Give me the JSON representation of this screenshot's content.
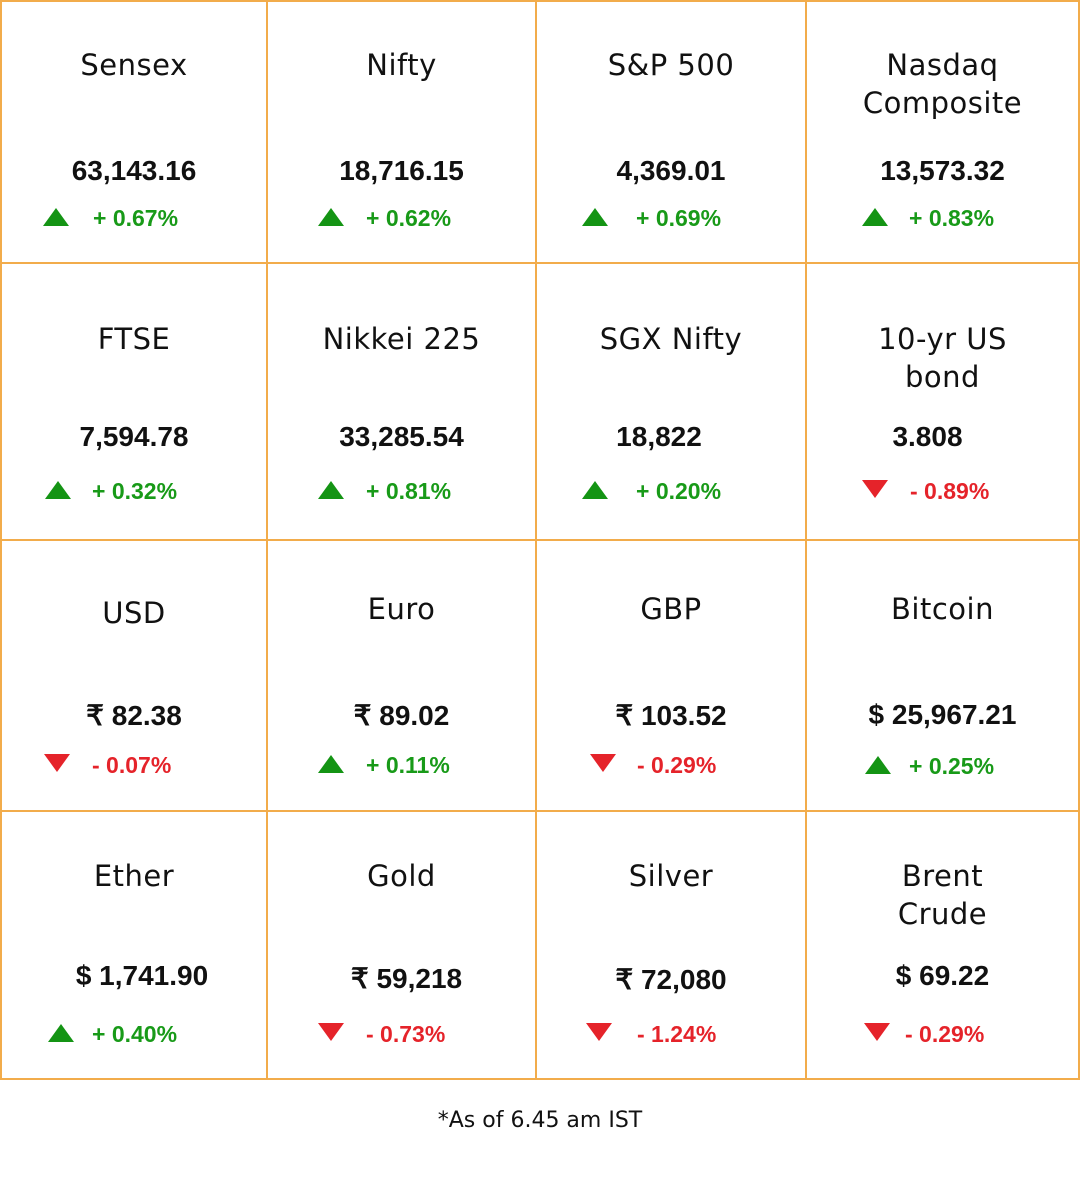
{
  "footnote": "*As of 6.45 am IST",
  "colors": {
    "border": "#f2ac4b",
    "up": "#189a18",
    "down": "#e5232a"
  },
  "tiles": [
    {
      "name": "Sensex",
      "value": "63,143.16",
      "change": "+ 0.67%",
      "direction": "up",
      "direction_icon": "up-triangle-icon"
    },
    {
      "name": "Nifty",
      "value": "18,716.15",
      "change": "+ 0.62%",
      "direction": "up",
      "direction_icon": "up-triangle-icon"
    },
    {
      "name": "S&P 500",
      "value": "4,369.01",
      "change": "+ 0.69%",
      "direction": "up",
      "direction_icon": "up-triangle-icon"
    },
    {
      "name": "Nasdaq Composite",
      "value": "13,573.32",
      "change": "+ 0.83%",
      "direction": "up",
      "direction_icon": "up-triangle-icon"
    },
    {
      "name": "FTSE",
      "value": "7,594.78",
      "change": "+ 0.32%",
      "direction": "up",
      "direction_icon": "up-triangle-icon"
    },
    {
      "name": "Nikkei 225",
      "value": "33,285.54",
      "change": "+ 0.81%",
      "direction": "up",
      "direction_icon": "up-triangle-icon"
    },
    {
      "name": "SGX Nifty",
      "value": "18,822",
      "change": "+ 0.20%",
      "direction": "up",
      "direction_icon": "up-triangle-icon"
    },
    {
      "name": "10-yr US bond",
      "value": "3.808",
      "change": "- 0.89%",
      "direction": "down",
      "direction_icon": "down-triangle-icon"
    },
    {
      "name": "USD",
      "value": "₹ 82.38",
      "change": "- 0.07%",
      "direction": "down",
      "direction_icon": "down-triangle-icon"
    },
    {
      "name": "Euro",
      "value": "₹ 89.02",
      "change": "+ 0.11%",
      "direction": "up",
      "direction_icon": "up-triangle-icon"
    },
    {
      "name": "GBP",
      "value": "₹ 103.52",
      "change": "- 0.29%",
      "direction": "down",
      "direction_icon": "down-triangle-icon"
    },
    {
      "name": "Bitcoin",
      "value": "$ 25,967.21",
      "change": "+ 0.25%",
      "direction": "up",
      "direction_icon": "up-triangle-icon"
    },
    {
      "name": "Ether",
      "value": "$ 1,741.90",
      "change": "+ 0.40%",
      "direction": "up",
      "direction_icon": "up-triangle-icon"
    },
    {
      "name": "Gold",
      "value": "₹ 59,218",
      "change": "- 0.73%",
      "direction": "down",
      "direction_icon": "down-triangle-icon"
    },
    {
      "name": "Silver",
      "value": "₹ 72,080",
      "change": "- 1.24%",
      "direction": "down",
      "direction_icon": "down-triangle-icon"
    },
    {
      "name": "Brent Crude",
      "value": "$ 69.22",
      "change": "- 0.29%",
      "direction": "down",
      "direction_icon": "down-triangle-icon"
    }
  ]
}
